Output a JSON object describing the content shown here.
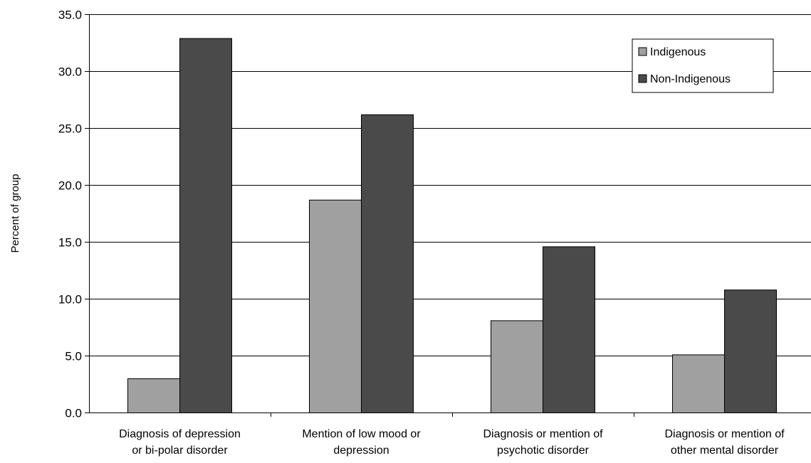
{
  "chart_data": {
    "type": "bar",
    "title": "",
    "xlabel": "",
    "ylabel": "Percent of group",
    "ylim": [
      0,
      35
    ],
    "yticks": [
      "0.0",
      "5.0",
      "10.0",
      "15.0",
      "20.0",
      "25.0",
      "30.0",
      "35.0"
    ],
    "ytick_values": [
      0,
      5,
      10,
      15,
      20,
      25,
      30,
      35
    ],
    "grid": true,
    "legend_position": "top-right",
    "categories": [
      [
        "Diagnosis of depression",
        "or bi-polar disorder"
      ],
      [
        "Mention of low mood or",
        "depression"
      ],
      [
        "Diagnosis or mention of",
        "psychotic disorder"
      ],
      [
        "Diagnosis or mention of",
        "other mental disorder"
      ]
    ],
    "series": [
      {
        "name": "Indigenous",
        "color": "#a0a0a0",
        "values": [
          3.0,
          18.7,
          8.1,
          5.1
        ]
      },
      {
        "name": "Non-Indigenous",
        "color": "#4a4a4a",
        "values": [
          32.9,
          26.2,
          14.6,
          10.8
        ]
      }
    ]
  }
}
